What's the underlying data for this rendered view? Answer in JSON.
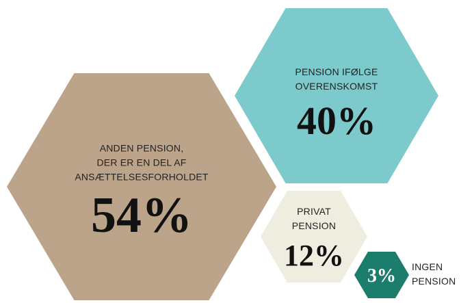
{
  "chart_data": {
    "type": "hexagon",
    "categories": [
      "ANDEN PENSION,\nDER ER EN DEL AF\nANSÆTTELSESFORHOLDET",
      "PENSION IFØLGE\nOVERENSKOMST",
      "PRIVAT\nPENSION",
      "INGEN\nPENSION"
    ],
    "values": [
      54,
      40,
      12,
      3
    ],
    "value_labels": [
      "54%",
      "40%",
      "12%",
      "3%"
    ],
    "colors": [
      "#bca48a",
      "#7ccacb",
      "#efede0",
      "#1d7d6c"
    ]
  }
}
